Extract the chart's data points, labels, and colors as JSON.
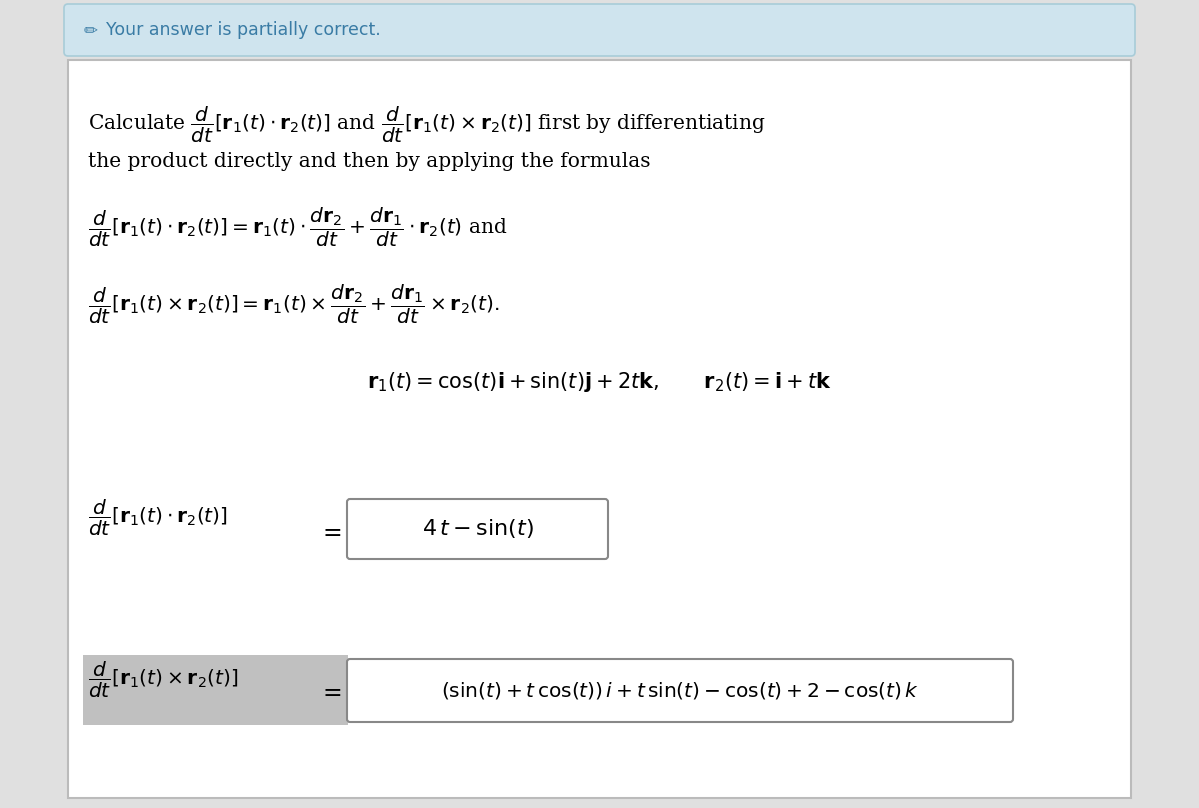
{
  "bg_color": "#e0e0e0",
  "banner_color": "#cfe4ee",
  "banner_text": "Your answer is partially correct.",
  "banner_text_color": "#3a7ca5",
  "main_box_color": "#ffffff",
  "main_box_border": "#bbbbbb",
  "content_text_color": "#000000",
  "answer_box_border": "#888888",
  "answer_box_bg": "#ffffff",
  "answer_lhs_bg": "#c0c0c0",
  "figsize": [
    11.99,
    8.08
  ],
  "dpi": 100
}
